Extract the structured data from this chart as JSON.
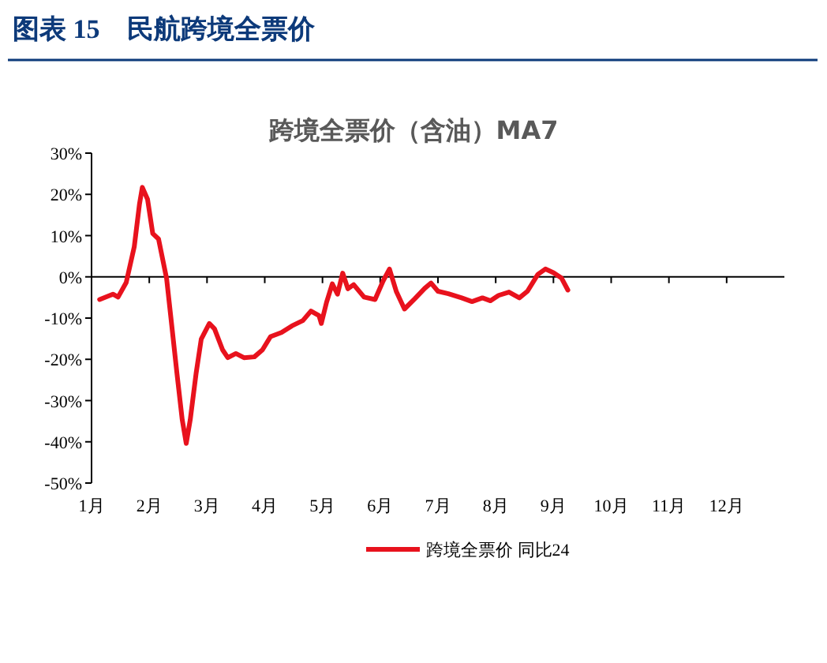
{
  "chart_data": {
    "type": "line",
    "title": "跨境全票价（含油）MA7",
    "annotations": [
      "图表 15　民航跨境全票价"
    ],
    "xlim": [
      1,
      13
    ],
    "xticks": [
      {
        "value": 1,
        "label": "1月"
      },
      {
        "value": 2,
        "label": "2月"
      },
      {
        "value": 3,
        "label": "3月"
      },
      {
        "value": 4,
        "label": "4月"
      },
      {
        "value": 5,
        "label": "5月"
      },
      {
        "value": 6,
        "label": "6月"
      },
      {
        "value": 7,
        "label": "7月"
      },
      {
        "value": 8,
        "label": "8月"
      },
      {
        "value": 9,
        "label": "9月"
      },
      {
        "value": 10,
        "label": "10月"
      },
      {
        "value": 11,
        "label": "11月"
      },
      {
        "value": 12,
        "label": "12月"
      }
    ],
    "ylim": [
      -50,
      30
    ],
    "yticks": [
      {
        "value": -50,
        "label": "-50%"
      },
      {
        "value": -40,
        "label": "-40%"
      },
      {
        "value": -30,
        "label": "-30%"
      },
      {
        "value": -20,
        "label": "-20%"
      },
      {
        "value": -10,
        "label": "-10%"
      },
      {
        "value": 0,
        "label": "0%"
      },
      {
        "value": 10,
        "label": "10%"
      },
      {
        "value": 20,
        "label": "20%"
      },
      {
        "value": 30,
        "label": "30%"
      }
    ],
    "legend": "bottom",
    "series": [
      {
        "name": "跨境全票价 同比24",
        "color": "#e8121d",
        "x": [
          1.14,
          1.37,
          1.46,
          1.6,
          1.74,
          1.83,
          1.88,
          1.97,
          2.06,
          2.16,
          2.3,
          2.39,
          2.48,
          2.57,
          2.64,
          2.71,
          2.81,
          2.9,
          3.04,
          3.13,
          3.27,
          3.36,
          3.5,
          3.64,
          3.82,
          3.96,
          4.1,
          4.29,
          4.47,
          4.66,
          4.8,
          4.94,
          4.98,
          5.07,
          5.17,
          5.26,
          5.35,
          5.44,
          5.54,
          5.72,
          5.91,
          6.05,
          6.16,
          6.28,
          6.42,
          6.6,
          6.77,
          6.88,
          7.0,
          7.18,
          7.41,
          7.59,
          7.77,
          7.91,
          8.05,
          8.23,
          8.41,
          8.55,
          8.73,
          8.86,
          9.0,
          9.14,
          9.25
        ],
        "values": [
          -5.5,
          -4.2,
          -4.9,
          -1.4,
          7.3,
          17.6,
          21.7,
          18.8,
          10.5,
          9.2,
          -0.4,
          -11.9,
          -23.5,
          -34.6,
          -40.4,
          -34.6,
          -23.5,
          -15.1,
          -11.3,
          -12.6,
          -17.7,
          -19.6,
          -18.6,
          -19.6,
          -19.4,
          -17.7,
          -14.5,
          -13.5,
          -11.9,
          -10.6,
          -8.3,
          -9.4,
          -11.3,
          -6.2,
          -1.7,
          -4.2,
          0.9,
          -2.9,
          -1.9,
          -4.9,
          -5.5,
          -1.0,
          1.9,
          -3.6,
          -7.8,
          -5.3,
          -2.8,
          -1.5,
          -3.5,
          -4.1,
          -5.1,
          -6.0,
          -5.1,
          -5.8,
          -4.5,
          -3.7,
          -5.1,
          -3.5,
          0.6,
          1.9,
          1.0,
          -0.3,
          -3.2
        ]
      }
    ]
  }
}
